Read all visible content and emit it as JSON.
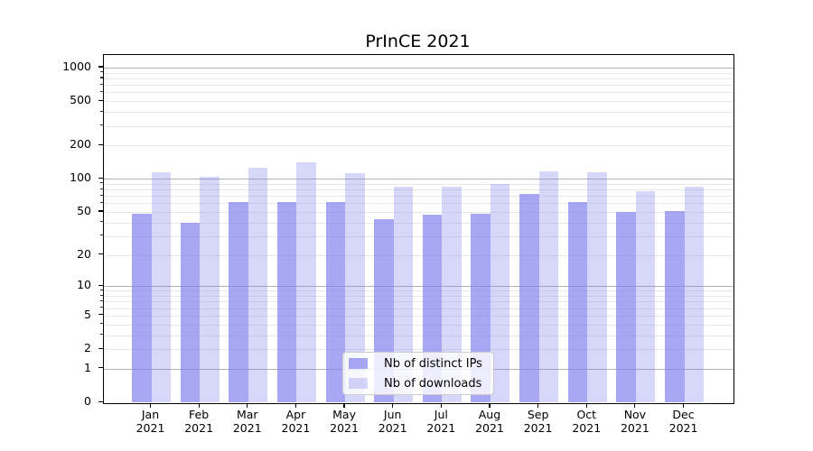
{
  "title": "PrInCE 2021",
  "chart_data": {
    "type": "bar",
    "title": "PrInCE 2021",
    "categories": [
      "Jan",
      "Feb",
      "Mar",
      "Apr",
      "May",
      "Jun",
      "Jul",
      "Aug",
      "Sep",
      "Oct",
      "Nov",
      "Dec"
    ],
    "category_year_label": "2021",
    "series": [
      {
        "name": "Nb of distinct IPs",
        "values": [
          48,
          40,
          62,
          62,
          61,
          43,
          47,
          48,
          73,
          61,
          50,
          51
        ]
      },
      {
        "name": "Nb of downloads",
        "values": [
          115,
          104,
          126,
          140,
          112,
          85,
          85,
          90,
          117,
          115,
          77,
          84
        ]
      }
    ],
    "xlabel": "",
    "ylabel": "",
    "y_axis": {
      "scale": "log1p (symlog-like: position proportional to log(1+value))",
      "tick_values": [
        0,
        1,
        2,
        5,
        10,
        20,
        50,
        100,
        200,
        500,
        1000
      ],
      "major_gridline_values": [
        1,
        10,
        100,
        1000
      ],
      "minor_gridline_values": [
        2,
        3,
        4,
        5,
        6,
        7,
        8,
        9,
        20,
        30,
        40,
        50,
        60,
        70,
        80,
        90,
        200,
        300,
        400,
        500,
        600,
        700,
        800,
        900
      ],
      "ylim": [
        0,
        1500
      ]
    },
    "grid": true,
    "legend_position": "lower center"
  },
  "legend": {
    "entries": [
      "Nb of distinct IPs",
      "Nb of downloads"
    ]
  },
  "colors": {
    "bar_base": "#8282EE",
    "ip_bar_alpha": 0.7,
    "dl_bar_alpha": 0.32,
    "ip_bar_rendered": "#A8A8F0",
    "dl_bar_rendered": "#D8D8F9",
    "major_gridline": "#B0B0B0",
    "minor_gridline": "#E8E8E8",
    "axis": "#000000",
    "legend_border": "#CCCCCC",
    "background": "#FFFFFF"
  }
}
